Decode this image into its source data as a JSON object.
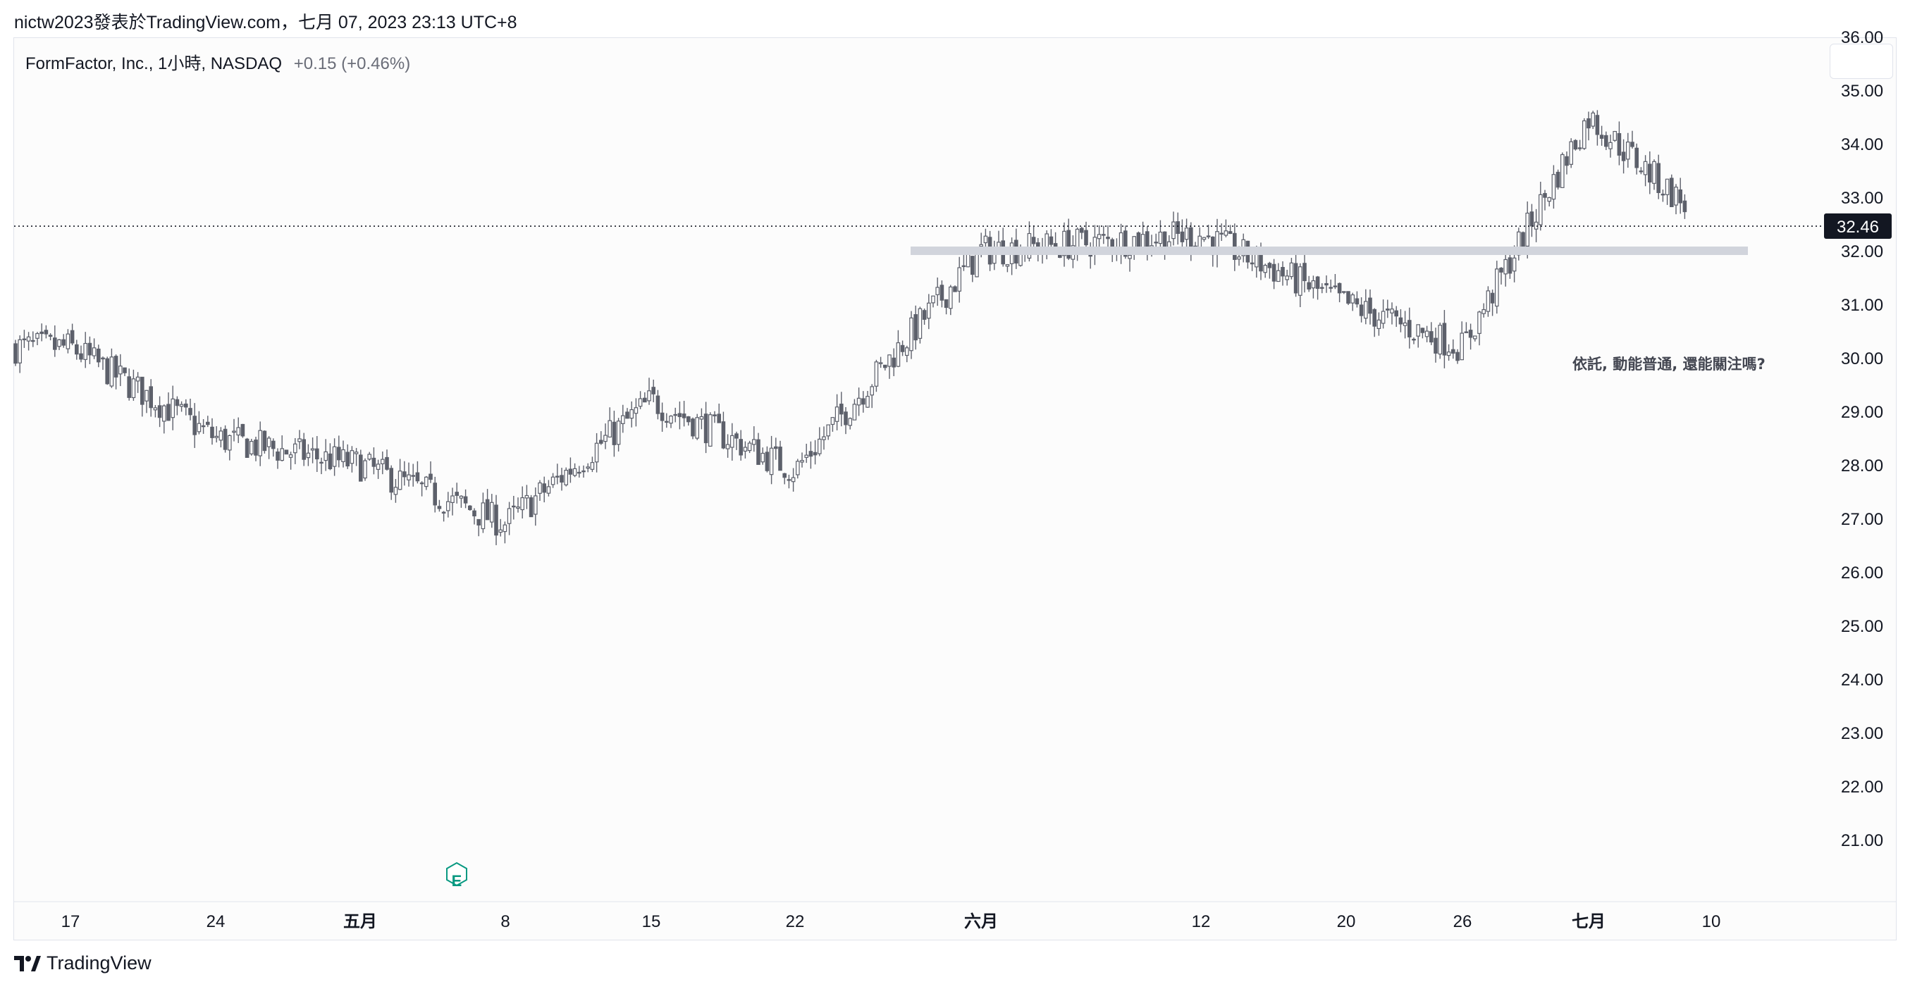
{
  "header": {
    "published_by": "nictw2023發表於TradingView.com，七月 07, 2023 23:13 UTC+8"
  },
  "legend": {
    "symbol": "FormFactor, Inc., 1小時, NASDAQ",
    "change": "+0.15 (+0.46%)"
  },
  "footer": {
    "brand": "TradingView"
  },
  "colors": {
    "candle": "#5d606b",
    "candle_up_fill": "#ffffff",
    "candle_down_fill": "#5d606b",
    "zone": "#d1d4dc",
    "earnings_badge": "#089981",
    "price_badge_bg": "#131722"
  },
  "chart_data": {
    "type": "candlestick",
    "title": "FormFactor, Inc., 1小時, NASDAQ",
    "interval": "1小時",
    "ylim": [
      21,
      36.6
    ],
    "y_ticks": [
      "36.00",
      "35.00",
      "34.00",
      "33.00",
      "32.00",
      "31.00",
      "30.00",
      "29.00",
      "28.00",
      "27.00",
      "26.00",
      "25.00",
      "24.00",
      "23.00",
      "22.00",
      "21.00"
    ],
    "x_ticks": [
      "17",
      "24",
      "五月",
      "8",
      "15",
      "22",
      "六月",
      "12",
      "20",
      "26",
      "七月",
      "10"
    ],
    "last_price": 32.46,
    "last_price_label": "32.46",
    "horizontal_zone": {
      "price": 32.0
    },
    "annotation": "依託, 動能普通, 還能關注嗎?",
    "earnings_marker": "E",
    "close_path": [
      [
        "17",
        30.2
      ],
      [
        "24",
        28.5
      ],
      [
        "五月",
        28.0
      ],
      [
        "8",
        26.9
      ],
      [
        "15",
        29.2
      ],
      [
        "22",
        27.9
      ],
      [
        "六月",
        32.0
      ],
      [
        "12",
        32.3
      ],
      [
        "20",
        31.0
      ],
      [
        "26",
        30.2
      ],
      [
        "七月",
        34.5
      ],
      [
        "10",
        32.4
      ]
    ]
  }
}
